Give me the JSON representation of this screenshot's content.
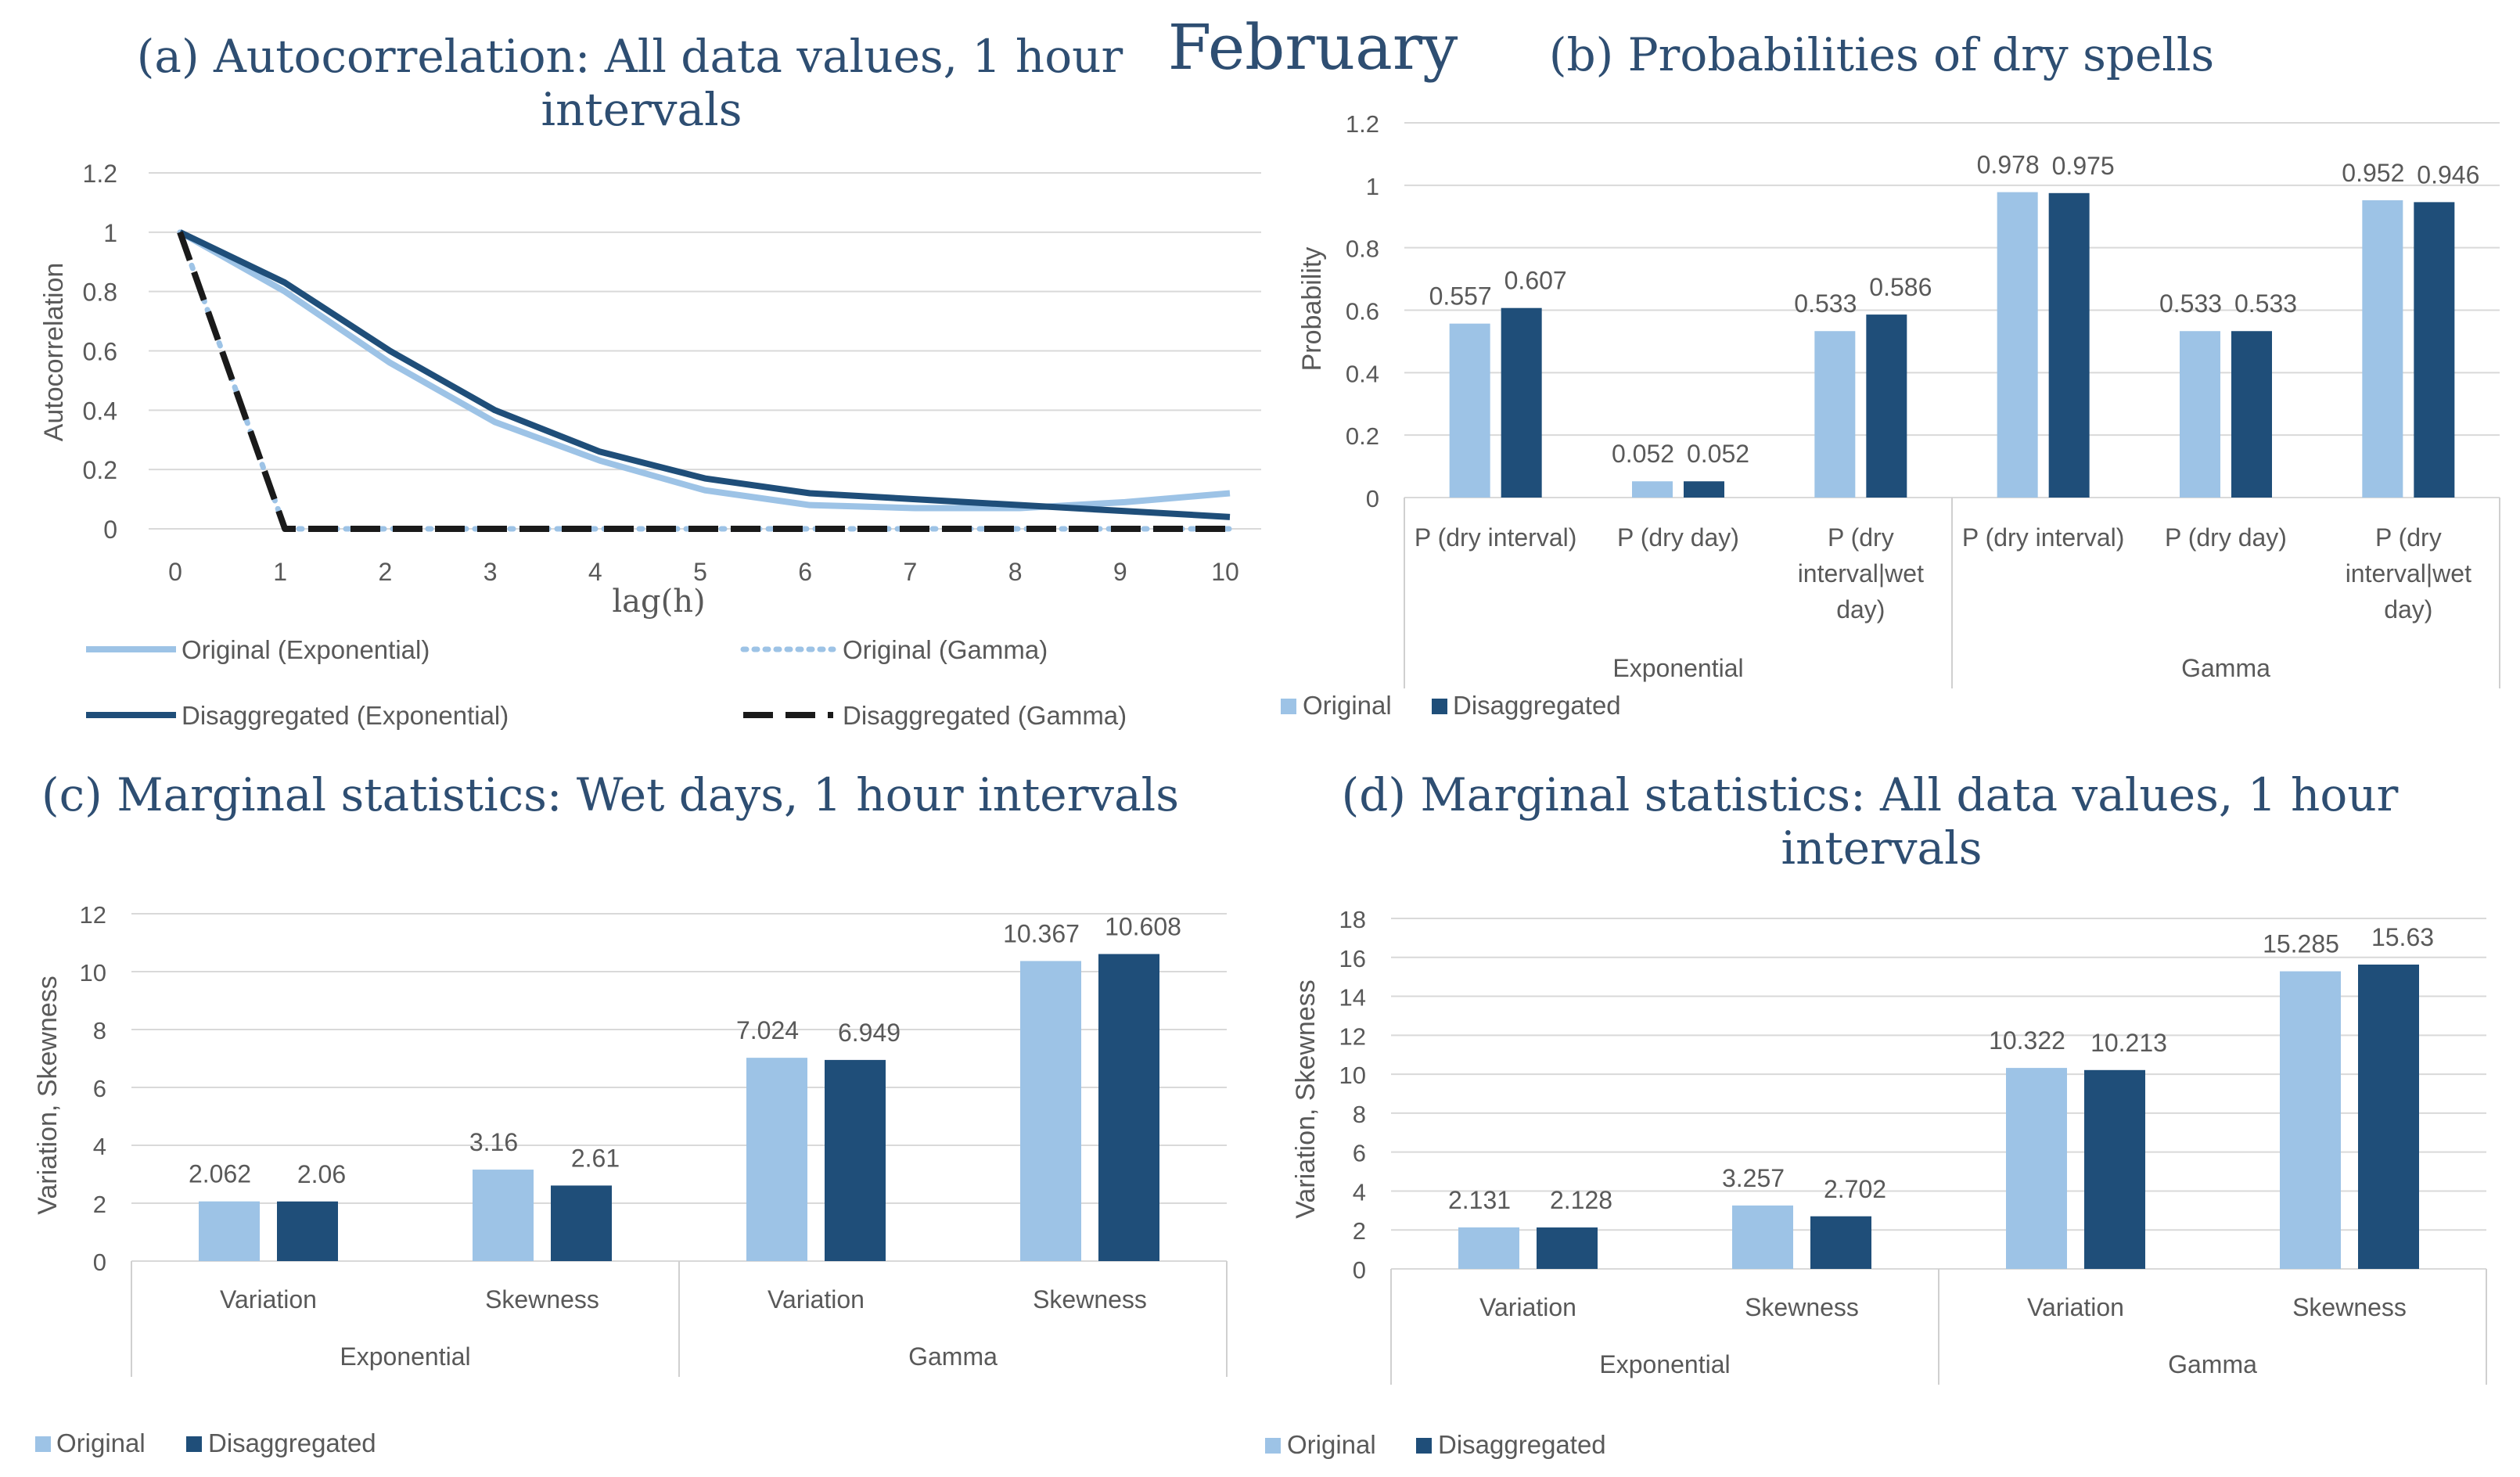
{
  "figure_title": "February",
  "colors": {
    "original": "#9dc3e6",
    "disaggregated": "#1f4e79",
    "title": "#2e4e72",
    "grid": "#d9d9d9",
    "axis_text": "#595959",
    "gray_label": "#a6a6a6"
  },
  "chart_data": [
    {
      "id": "a",
      "type": "line",
      "title_line1": "(a) Autocorrelation: All data values, 1 hour",
      "title_line2": "intervals",
      "xlabel": "lag(h)",
      "ylabel": "Autocorrelation",
      "x": [
        0,
        1,
        2,
        3,
        4,
        5,
        6,
        7,
        8,
        9,
        10
      ],
      "ylim": [
        0,
        1.2
      ],
      "yticks": [
        0,
        0.2,
        0.4,
        0.6,
        0.8,
        1,
        1.2
      ],
      "series": [
        {
          "name": "Original (Exponential)",
          "style": "solid-light",
          "values": [
            1,
            0.8,
            0.56,
            0.36,
            0.23,
            0.13,
            0.08,
            0.07,
            0.07,
            0.09,
            0.12
          ]
        },
        {
          "name": "Original (Gamma)",
          "style": "dotted-light",
          "values": [
            1,
            0,
            0,
            0,
            0,
            0,
            0,
            0,
            0,
            0,
            0
          ]
        },
        {
          "name": "Disaggregated (Exponential)",
          "style": "solid-dark",
          "values": [
            1,
            0.83,
            0.6,
            0.4,
            0.26,
            0.17,
            0.12,
            0.1,
            0.08,
            0.06,
            0.04
          ]
        },
        {
          "name": "Disaggregated (Gamma)",
          "style": "dashed-dark",
          "values": [
            1,
            0,
            0,
            0,
            0,
            0,
            0,
            0,
            0,
            0,
            0
          ]
        }
      ]
    },
    {
      "id": "b",
      "type": "bar",
      "title": "(b) Probabilities of dry spells",
      "ylabel": "Probability",
      "ylim": [
        0,
        1.2
      ],
      "yticks": [
        0,
        0.2,
        0.4,
        0.6,
        0.8,
        1,
        1.2
      ],
      "groups": [
        "Exponential",
        "Gamma"
      ],
      "categories": [
        [
          "P (dry interval)"
        ],
        [
          "P (dry day)"
        ],
        [
          "P (dry",
          "interval|wet",
          "day)"
        ],
        [
          "P (dry interval)"
        ],
        [
          "P (dry day)"
        ],
        [
          "P (dry",
          "interval|wet",
          "day)"
        ]
      ],
      "series": [
        {
          "name": "Original",
          "values": [
            0.557,
            0.052,
            0.533,
            0.978,
            0.533,
            0.952
          ]
        },
        {
          "name": "Disaggregated",
          "values": [
            0.607,
            0.052,
            0.586,
            0.975,
            0.533,
            0.946
          ]
        }
      ],
      "labels": {
        "Original": [
          "0.557",
          "0.052",
          "0.533",
          "0.978",
          "0.533",
          "0.952"
        ],
        "Disaggregated": [
          "0.607",
          "0.052",
          "0.586",
          "0.975",
          "0.533",
          "0.946"
        ]
      }
    },
    {
      "id": "c",
      "type": "bar",
      "title": "(c) Marginal statistics: Wet days, 1 hour intervals",
      "ylabel": "Variation, Skewness",
      "ylim": [
        0,
        12
      ],
      "yticks": [
        0,
        2,
        4,
        6,
        8,
        10,
        12
      ],
      "groups": [
        "Exponential",
        "Gamma"
      ],
      "categories": [
        [
          "Variation"
        ],
        [
          "Skewness"
        ],
        [
          "Variation"
        ],
        [
          "Skewness"
        ]
      ],
      "series": [
        {
          "name": "Original",
          "values": [
            2.062,
            3.16,
            7.024,
            10.367
          ]
        },
        {
          "name": "Disaggregated",
          "values": [
            2.06,
            2.61,
            6.949,
            10.608
          ]
        }
      ],
      "labels": {
        "Original": [
          "2.062",
          "3.16",
          "7.024",
          "10.367"
        ],
        "Disaggregated": [
          "2.06",
          "2.61",
          "6.949",
          "10.608"
        ]
      }
    },
    {
      "id": "d",
      "type": "bar",
      "title_line1": "(d) Marginal statistics: All data values, 1 hour",
      "title_line2": "intervals",
      "ylabel": "Variation, Skewness",
      "ylim": [
        0,
        18
      ],
      "yticks": [
        0,
        2,
        4,
        6,
        8,
        10,
        12,
        14,
        16,
        18
      ],
      "groups": [
        "Exponential",
        "Gamma"
      ],
      "categories": [
        [
          "Variation"
        ],
        [
          "Skewness"
        ],
        [
          "Variation"
        ],
        [
          "Skewness"
        ]
      ],
      "series": [
        {
          "name": "Original",
          "values": [
            2.131,
            3.257,
            10.322,
            15.285
          ]
        },
        {
          "name": "Disaggregated",
          "values": [
            2.128,
            2.702,
            10.213,
            15.63
          ]
        }
      ],
      "labels": {
        "Original": [
          "2.131",
          "3.257",
          "10.322",
          "15.285"
        ],
        "Disaggregated": [
          "2.128",
          "2.702",
          "10.213",
          "15.63"
        ]
      }
    }
  ]
}
